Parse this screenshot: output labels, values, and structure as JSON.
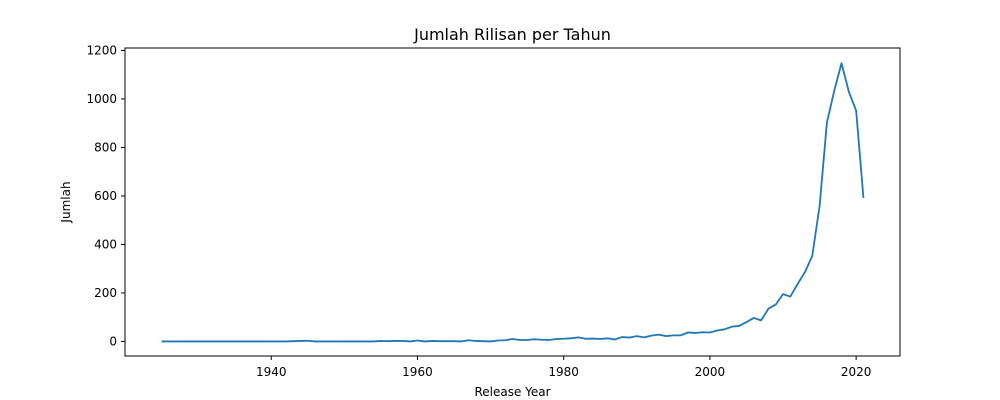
{
  "chart_data": {
    "type": "line",
    "title": "Jumlah Rilisan per Tahun",
    "xlabel": "Release Year",
    "ylabel": "Jumlah",
    "xlim": [
      1920,
      2026
    ],
    "ylim": [
      -60,
      1210
    ],
    "xticks": [
      1940,
      1960,
      1980,
      2000,
      2020
    ],
    "yticks": [
      0,
      200,
      400,
      600,
      800,
      1000,
      1200
    ],
    "grid": false,
    "line_color": "#1f77b4",
    "series": [
      {
        "x": [
          1925,
          1930,
          1935,
          1940,
          1942,
          1943,
          1944,
          1945,
          1946,
          1947,
          1950,
          1954,
          1955,
          1956,
          1957,
          1958,
          1959,
          1960,
          1961,
          1962,
          1963,
          1964,
          1965,
          1966,
          1967,
          1968,
          1969,
          1970,
          1971,
          1972,
          1973,
          1974,
          1975,
          1976,
          1977,
          1978,
          1979,
          1980,
          1981,
          1982,
          1983,
          1984,
          1985,
          1986,
          1987,
          1988,
          1989,
          1990,
          1991,
          1992,
          1993,
          1994,
          1995,
          1996,
          1997,
          1998,
          1999,
          2000,
          2001,
          2002,
          2003,
          2004,
          2005,
          2006,
          2007,
          2008,
          2009,
          2010,
          2011,
          2012,
          2013,
          2014,
          2015,
          2016,
          2017,
          2018,
          2019,
          2020,
          2021
        ],
        "y": [
          0,
          0,
          0,
          0,
          0,
          1,
          2,
          3,
          0,
          0,
          0,
          0,
          2,
          1,
          2,
          2,
          0,
          4,
          0,
          2,
          1,
          1,
          1,
          0,
          5,
          2,
          1,
          0,
          4,
          5,
          10,
          6,
          6,
          9,
          7,
          6,
          10,
          11,
          13,
          17,
          11,
          12,
          10,
          13,
          8,
          18,
          16,
          22,
          17,
          24,
          28,
          22,
          25,
          25,
          37,
          35,
          38,
          37,
          45,
          50,
          61,
          64,
          80,
          97,
          87,
          135,
          152,
          195,
          185,
          237,
          286,
          353,
          558,
          902,
          1033,
          1147,
          1030,
          952,
          592
        ]
      }
    ]
  }
}
